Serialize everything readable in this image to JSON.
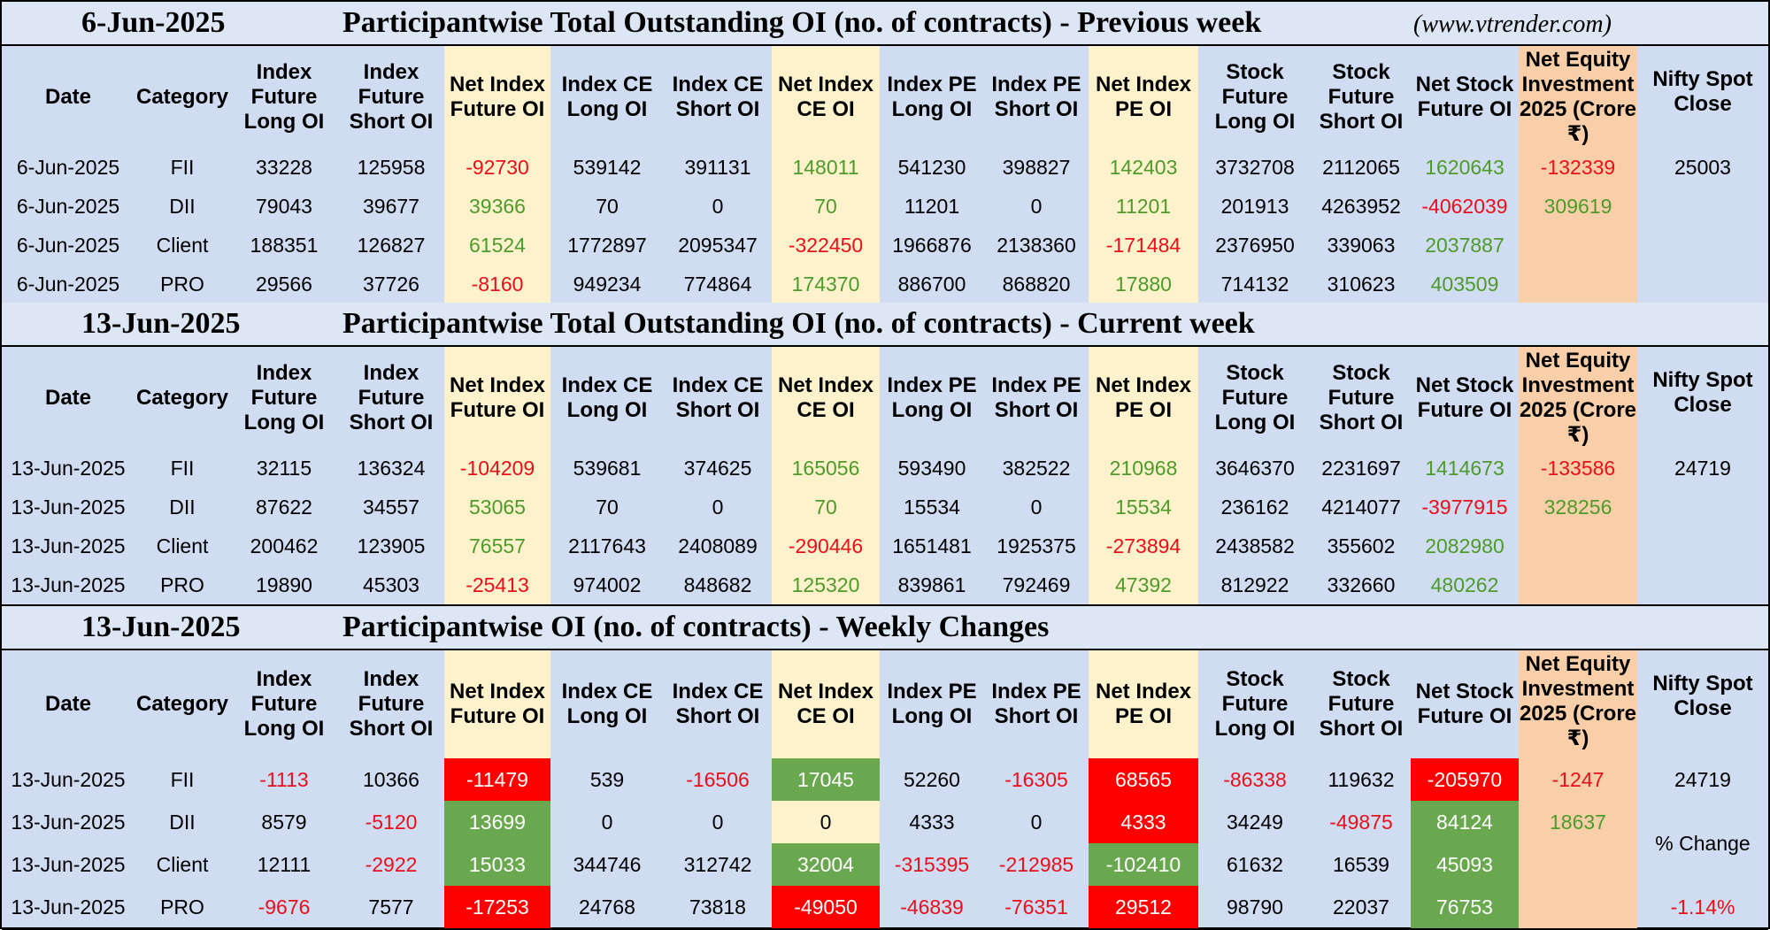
{
  "site": "(www.vtrender.com)",
  "headers": [
    "Date",
    "Category",
    "Index Future Long OI",
    "Index Future Short OI",
    "Net Index Future OI",
    "Index CE Long OI",
    "Index CE Short OI",
    "Net Index CE OI",
    "Index PE Long OI",
    "Index PE Short OI",
    "Net Index PE OI",
    "Stock Future Long OI",
    "Stock Future Short OI",
    "Net Stock Future OI",
    "Net Equity Investment 2025 (Crore ₹)",
    "Nifty Spot Close"
  ],
  "sections": [
    {
      "date": "6-Jun-2025",
      "title": "Participantwise Total Outstanding OI (no. of contracts) - Previous week",
      "spot": [
        "25003",
        "",
        "",
        ""
      ],
      "rows": [
        [
          "6-Jun-2025",
          "FII",
          "33228",
          "125958",
          "-92730",
          "539142",
          "391131",
          "148011",
          "541230",
          "398827",
          "142403",
          "3732708",
          "2112065",
          "1620643",
          "-132339"
        ],
        [
          "6-Jun-2025",
          "DII",
          "79043",
          "39677",
          "39366",
          "70",
          "0",
          "70",
          "11201",
          "0",
          "11201",
          "201913",
          "4263952",
          "-4062039",
          "309619"
        ],
        [
          "6-Jun-2025",
          "Client",
          "188351",
          "126827",
          "61524",
          "1772897",
          "2095347",
          "-322450",
          "1966876",
          "2138360",
          "-171484",
          "2376950",
          "339063",
          "2037887",
          ""
        ],
        [
          "6-Jun-2025",
          "PRO",
          "29566",
          "37726",
          "-8160",
          "949234",
          "774864",
          "174370",
          "886700",
          "868820",
          "17880",
          "714132",
          "310623",
          "403509",
          ""
        ]
      ]
    },
    {
      "date": "13-Jun-2025",
      "title": "Participantwise Total Outstanding OI (no. of contracts) - Current week",
      "spot": [
        "24719",
        "",
        "",
        ""
      ],
      "rows": [
        [
          "13-Jun-2025",
          "FII",
          "32115",
          "136324",
          "-104209",
          "539681",
          "374625",
          "165056",
          "593490",
          "382522",
          "210968",
          "3646370",
          "2231697",
          "1414673",
          "-133586"
        ],
        [
          "13-Jun-2025",
          "DII",
          "87622",
          "34557",
          "53065",
          "70",
          "0",
          "70",
          "15534",
          "0",
          "15534",
          "236162",
          "4214077",
          "-3977915",
          "328256"
        ],
        [
          "13-Jun-2025",
          "Client",
          "200462",
          "123905",
          "76557",
          "2117643",
          "2408089",
          "-290446",
          "1651481",
          "1925375",
          "-273894",
          "2438582",
          "355602",
          "2082980",
          ""
        ],
        [
          "13-Jun-2025",
          "PRO",
          "19890",
          "45303",
          "-25413",
          "974002",
          "848682",
          "125320",
          "839861",
          "792469",
          "47392",
          "812922",
          "332660",
          "480262",
          ""
        ]
      ]
    },
    {
      "date": "13-Jun-2025",
      "title": "Participantwise OI (no. of contracts) - Weekly Changes",
      "spot": [
        "24719",
        "",
        "% Change",
        "-1.14%"
      ],
      "rows": [
        [
          "13-Jun-2025",
          "FII",
          "-1113",
          "10366",
          "-11479",
          "539",
          "-16506",
          "17045",
          "52260",
          "-16305",
          "68565",
          "-86338",
          "119632",
          "-205970",
          "-1247"
        ],
        [
          "13-Jun-2025",
          "DII",
          "8579",
          "-5120",
          "13699",
          "0",
          "0",
          "0",
          "4333",
          "0",
          "4333",
          "34249",
          "-49875",
          "84124",
          "18637"
        ],
        [
          "13-Jun-2025",
          "Client",
          "12111",
          "-2922",
          "15033",
          "344746",
          "312742",
          "32004",
          "-315395",
          "-212985",
          "-102410",
          "61632",
          "16539",
          "45093",
          ""
        ],
        [
          "13-Jun-2025",
          "PRO",
          "-9676",
          "7577",
          "-17253",
          "24768",
          "73818",
          "-49050",
          "-46839",
          "-76351",
          "29512",
          "98790",
          "22037",
          "76753",
          ""
        ]
      ]
    }
  ],
  "colors": {
    "negative": "#e8101a",
    "positive": "#4e9a2a",
    "highlight_yellow": "#fdf2cc",
    "highlight_orange": "#f8cfa8",
    "cell_red": "#ff0000",
    "cell_green": "#6aa84f",
    "background": "#cfdcf2"
  }
}
